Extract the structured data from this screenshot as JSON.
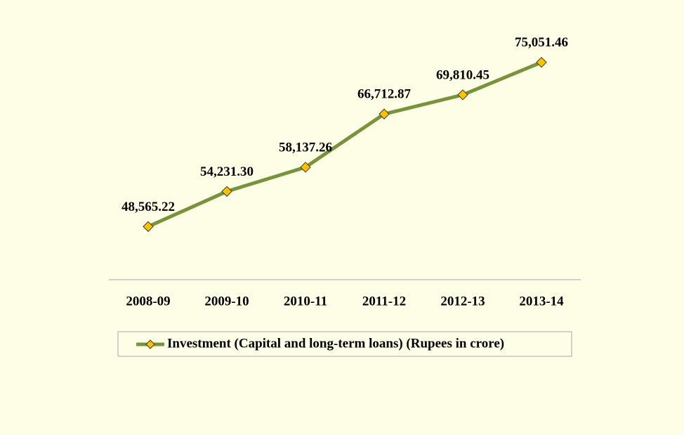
{
  "chart_data": {
    "type": "line",
    "categories": [
      "2008-09",
      "2009-10",
      "2010-11",
      "2011-12",
      "2012-13",
      "2013-14"
    ],
    "series": [
      {
        "name": "Investment (Capital and long-term loans) (Rupees in crore)",
        "color": "#77933c",
        "marker_color": "#ffc000",
        "values": [
          48565.22,
          54231.3,
          58137.26,
          66712.87,
          69810.45,
          75051.46
        ],
        "value_labels": [
          "48,565.22",
          "54,231.30",
          "58,137.26",
          "66,712.87",
          "69,810.45",
          "75,051.46"
        ]
      }
    ],
    "ylim": [
      40000,
      80000
    ],
    "legend": "bottom"
  }
}
